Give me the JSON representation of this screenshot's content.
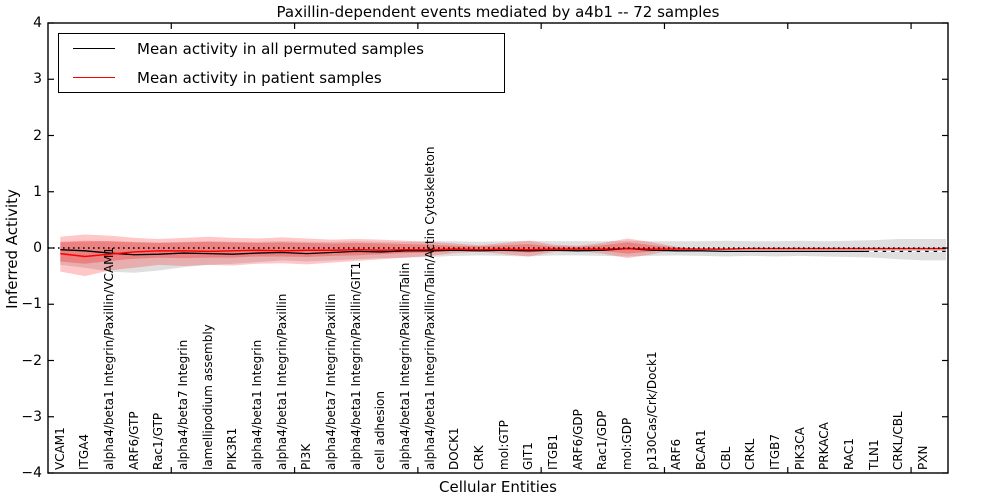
{
  "title": "Paxillin-dependent events mediated by a4b1 -- 72 samples",
  "legend": {
    "items": [
      {
        "label": "Mean activity in all permuted samples",
        "color": "#000000"
      },
      {
        "label": "Mean activity in patient samples",
        "color": "#ff0000"
      }
    ]
  },
  "colors": {
    "permuted_line": "#000000",
    "patient_line": "#ff0000",
    "permuted_band": "rgba(110,110,110,0.22)",
    "patient_band": "rgba(255,0,0,0.22)",
    "frame": "#000000",
    "background": "#ffffff"
  },
  "chart_data": {
    "type": "line",
    "title": "Paxillin-dependent events mediated by a4b1 -- 72 samples",
    "xlabel": "Cellular Entities",
    "ylabel": "Inferred Activity",
    "ylim": [
      -4,
      4
    ],
    "grid": false,
    "legend_position": "upper left",
    "ytick_values": [
      4,
      3,
      2,
      1,
      0,
      -1,
      -2,
      -3,
      -4
    ],
    "ytick_labels": [
      "4",
      "3",
      "2",
      "1",
      "0",
      "−1",
      "−2",
      "−3",
      "−4"
    ],
    "xtick_positions": [
      4.5,
      9.5,
      14.5,
      19.5,
      24.5,
      29.5,
      34.5
    ],
    "categories": [
      "VCAM1",
      "ITGA4",
      "alpha4/beta1 Integrin/Paxillin/VCAM1",
      "ARF6/GTP",
      "Rac1/GTP",
      "alpha4/beta7 Integrin",
      "lamellipodium assembly",
      "PIK3R1",
      "alpha4/beta1 Integrin",
      "alpha4/beta1 Integrin/Paxillin",
      "PI3K",
      "alpha4/beta7 Integrin/Paxillin",
      "alpha4/beta1 Integrin/Paxillin/GIT1",
      "cell adhesion",
      "alpha4/beta1 Integrin/Paxillin/Talin",
      "alpha4/beta1 Integrin/Paxillin/Talin/Actin Cytoskeleton",
      "DOCK1",
      "CRK",
      "mol:GTP",
      "GIT1",
      "ITGB1",
      "ARF6/GDP",
      "Rac1/GDP",
      "mol:GDP",
      "p130Cas/Crk/Dock1",
      "ARF6",
      "BCAR1",
      "CBL",
      "CRKL",
      "ITGB7",
      "PIK3CA",
      "PRKACA",
      "RAC1",
      "TLN1",
      "CRKL/CBL",
      "PXN"
    ],
    "series": [
      {
        "name": "Mean activity in all permuted samples",
        "color": "#000000",
        "values": [
          -0.03,
          -0.05,
          -0.09,
          -0.12,
          -0.11,
          -0.09,
          -0.1,
          -0.11,
          -0.09,
          -0.08,
          -0.1,
          -0.08,
          -0.06,
          -0.07,
          -0.05,
          -0.05,
          -0.04,
          -0.05,
          -0.04,
          -0.05,
          -0.04,
          -0.05,
          -0.04,
          -0.01,
          -0.04,
          -0.05,
          -0.05,
          -0.06,
          -0.06,
          -0.06,
          -0.06,
          -0.06,
          -0.06,
          -0.06,
          -0.06,
          -0.06
        ]
      },
      {
        "name": "Mean activity in patient samples",
        "color": "#ff0000",
        "values": [
          -0.1,
          -0.15,
          -0.11,
          -0.07,
          -0.05,
          -0.05,
          -0.06,
          -0.05,
          -0.04,
          -0.05,
          -0.04,
          -0.04,
          -0.03,
          -0.04,
          -0.03,
          -0.03,
          -0.02,
          -0.03,
          -0.02,
          -0.03,
          -0.02,
          -0.02,
          -0.02,
          -0.01,
          -0.02,
          -0.02,
          -0.02,
          -0.02,
          -0.01,
          -0.01,
          -0.01,
          -0.01,
          -0.01,
          -0.01,
          -0.01,
          -0.01
        ]
      }
    ],
    "bands": [
      {
        "name": "permuted-samples-range",
        "color": "rgba(110,110,110,0.22)",
        "top": [
          0.1,
          0.11,
          0.12,
          0.11,
          0.1,
          0.11,
          0.12,
          0.11,
          0.11,
          0.12,
          0.11,
          0.11,
          0.12,
          0.11,
          0.11,
          0.12,
          0.12,
          0.11,
          0.12,
          0.13,
          0.12,
          0.12,
          0.12,
          0.13,
          0.12,
          0.12,
          0.12,
          0.13,
          0.12,
          0.12,
          0.13,
          0.12,
          0.13,
          0.14,
          0.16,
          0.16
        ],
        "bottom": [
          -0.3,
          -0.35,
          -0.42,
          -0.44,
          -0.4,
          -0.34,
          -0.3,
          -0.28,
          -0.25,
          -0.22,
          -0.24,
          -0.22,
          -0.2,
          -0.18,
          -0.17,
          -0.16,
          -0.14,
          -0.13,
          -0.14,
          -0.15,
          -0.13,
          -0.13,
          -0.14,
          -0.15,
          -0.14,
          -0.13,
          -0.14,
          -0.15,
          -0.14,
          -0.15,
          -0.14,
          -0.15,
          -0.16,
          -0.17,
          -0.2,
          -0.22
        ]
      },
      {
        "name": "patient-samples-range-outer",
        "color": "rgba(255,0,0,0.22)",
        "top": [
          0.2,
          0.24,
          0.22,
          0.18,
          0.16,
          0.18,
          0.2,
          0.18,
          0.17,
          0.19,
          0.17,
          0.15,
          0.16,
          0.15,
          0.13,
          0.11,
          0.08,
          0.05,
          0.09,
          0.13,
          0.06,
          0.04,
          0.09,
          0.17,
          0.1,
          0.02,
          -0.01,
          -0.01,
          -0.01,
          -0.01,
          -0.01,
          -0.01,
          -0.01,
          -0.01,
          -0.01,
          -0.01
        ],
        "bottom": [
          -0.42,
          -0.5,
          -0.4,
          -0.35,
          -0.3,
          -0.32,
          -0.3,
          -0.31,
          -0.28,
          -0.27,
          -0.29,
          -0.26,
          -0.23,
          -0.2,
          -0.17,
          -0.14,
          -0.09,
          -0.06,
          -0.11,
          -0.15,
          -0.07,
          -0.05,
          -0.1,
          -0.18,
          -0.11,
          -0.02,
          -0.01,
          -0.01,
          -0.01,
          -0.01,
          -0.01,
          -0.01,
          -0.01,
          -0.01,
          -0.01,
          -0.01
        ]
      },
      {
        "name": "patient-samples-range-inner",
        "color": "rgba(255,0,0,0.26)",
        "top": [
          0.11,
          0.13,
          0.12,
          0.1,
          0.09,
          0.1,
          0.11,
          0.1,
          0.09,
          0.1,
          0.09,
          0.08,
          0.09,
          0.08,
          0.07,
          0.06,
          0.04,
          0.03,
          0.05,
          0.07,
          0.03,
          0.02,
          0.05,
          0.1,
          0.05,
          0.01,
          -0.01,
          -0.01,
          -0.01,
          -0.01,
          -0.01,
          -0.01,
          -0.01,
          -0.01,
          -0.01,
          -0.01
        ],
        "bottom": [
          -0.24,
          -0.28,
          -0.23,
          -0.19,
          -0.17,
          -0.18,
          -0.17,
          -0.17,
          -0.15,
          -0.15,
          -0.16,
          -0.14,
          -0.13,
          -0.11,
          -0.09,
          -0.08,
          -0.05,
          -0.03,
          -0.06,
          -0.08,
          -0.04,
          -0.03,
          -0.05,
          -0.1,
          -0.06,
          -0.01,
          -0.01,
          -0.01,
          -0.01,
          -0.01,
          -0.01,
          -0.01,
          -0.01,
          -0.01,
          -0.01,
          -0.01
        ]
      }
    ],
    "zero_line": {
      "y": 0,
      "style": "dotted",
      "color": "#000000"
    },
    "white_dash_overlay": {
      "y": -0.06,
      "from_category": 32.8,
      "style": "dashed",
      "color": "#ffffff"
    }
  }
}
